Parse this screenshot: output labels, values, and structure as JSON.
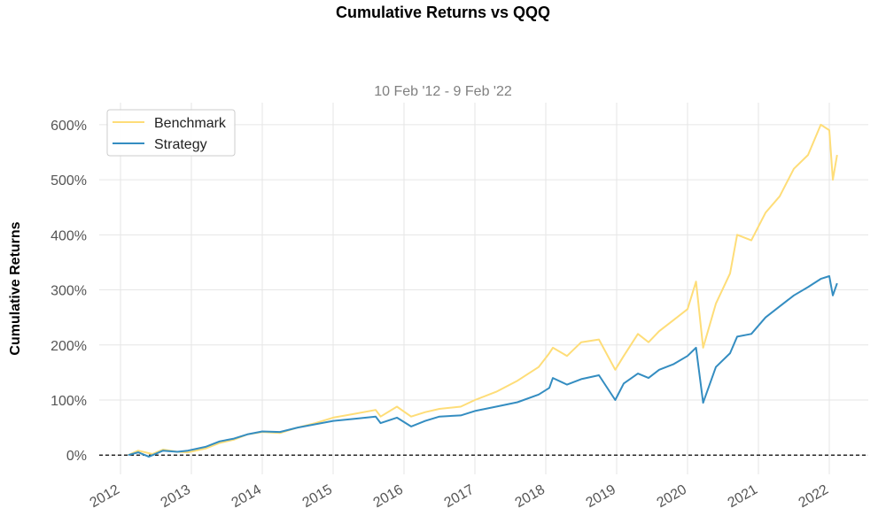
{
  "chart_data": {
    "type": "line",
    "title": "Cumulative Returns vs QQQ",
    "subtitle": "10 Feb '12 -  9 Feb '22",
    "ylabel": "Cumulative Returns",
    "xlabel": "",
    "xlim": [
      2011.7,
      2022.55
    ],
    "ylim": [
      -35,
      640
    ],
    "x_ticks": [
      2012,
      2013,
      2014,
      2015,
      2016,
      2017,
      2018,
      2019,
      2020,
      2021,
      2022
    ],
    "x_tick_labels": [
      "2012",
      "2013",
      "2014",
      "2015",
      "2016",
      "2017",
      "2018",
      "2019",
      "2020",
      "2021",
      "2022"
    ],
    "y_ticks": [
      0,
      100,
      200,
      300,
      400,
      500,
      600
    ],
    "y_tick_labels": [
      "0%",
      "100%",
      "200%",
      "300%",
      "400%",
      "500%",
      "600%"
    ],
    "grid": true,
    "legend_position": "top-left",
    "baseline": 0,
    "series": [
      {
        "name": "Benchmark",
        "color": "#fedd78",
        "x": [
          2012.11,
          2012.25,
          2012.45,
          2012.6,
          2012.8,
          2012.95,
          2013.2,
          2013.4,
          2013.6,
          2013.8,
          2014.0,
          2014.25,
          2014.5,
          2014.75,
          2015.0,
          2015.3,
          2015.6,
          2015.67,
          2015.9,
          2016.1,
          2016.3,
          2016.5,
          2016.8,
          2017.0,
          2017.3,
          2017.6,
          2017.9,
          2018.05,
          2018.1,
          2018.3,
          2018.5,
          2018.75,
          2018.98,
          2019.1,
          2019.3,
          2019.45,
          2019.6,
          2019.8,
          2020.0,
          2020.12,
          2020.22,
          2020.4,
          2020.6,
          2020.7,
          2020.9,
          2021.1,
          2021.3,
          2021.5,
          2021.7,
          2021.88,
          2022.0,
          2022.05,
          2022.11
        ],
        "values": [
          0,
          8,
          2,
          10,
          6,
          5,
          12,
          22,
          28,
          38,
          42,
          40,
          50,
          58,
          68,
          75,
          82,
          70,
          88,
          70,
          78,
          84,
          88,
          100,
          115,
          135,
          160,
          185,
          195,
          180,
          205,
          210,
          155,
          180,
          220,
          205,
          225,
          245,
          265,
          315,
          195,
          275,
          330,
          400,
          390,
          440,
          470,
          520,
          545,
          600,
          590,
          500,
          545
        ]
      },
      {
        "name": "Strategy",
        "color": "#348dc1",
        "x": [
          2012.11,
          2012.25,
          2012.4,
          2012.6,
          2012.8,
          2012.95,
          2013.2,
          2013.4,
          2013.6,
          2013.8,
          2014.0,
          2014.25,
          2014.5,
          2014.75,
          2015.0,
          2015.3,
          2015.6,
          2015.67,
          2015.9,
          2016.1,
          2016.3,
          2016.5,
          2016.8,
          2017.0,
          2017.3,
          2017.6,
          2017.9,
          2018.05,
          2018.1,
          2018.3,
          2018.5,
          2018.75,
          2018.98,
          2019.1,
          2019.3,
          2019.45,
          2019.6,
          2019.8,
          2020.0,
          2020.12,
          2020.22,
          2020.4,
          2020.6,
          2020.7,
          2020.9,
          2021.1,
          2021.3,
          2021.5,
          2021.7,
          2021.88,
          2022.0,
          2022.05,
          2022.11
        ],
        "values": [
          0,
          5,
          -3,
          8,
          6,
          8,
          15,
          25,
          30,
          38,
          43,
          42,
          50,
          56,
          62,
          66,
          70,
          58,
          68,
          52,
          62,
          70,
          72,
          80,
          88,
          96,
          110,
          122,
          140,
          128,
          138,
          145,
          100,
          130,
          148,
          140,
          155,
          165,
          180,
          195,
          95,
          160,
          185,
          215,
          220,
          250,
          270,
          290,
          305,
          320,
          325,
          290,
          312
        ]
      }
    ]
  }
}
